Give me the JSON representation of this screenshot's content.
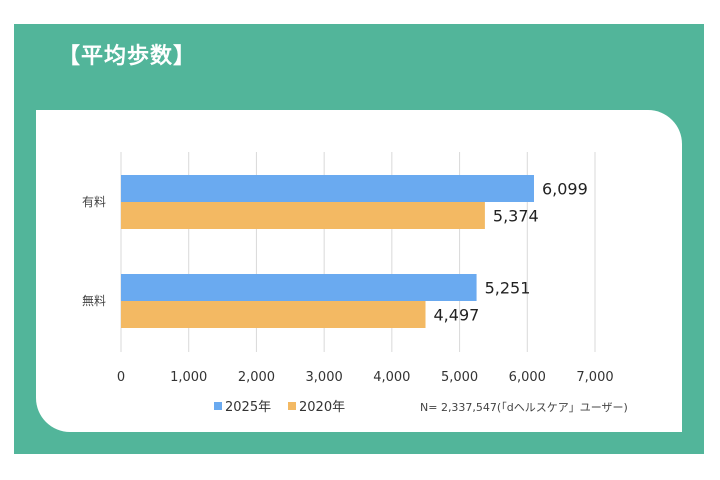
{
  "title": "【平均歩数】",
  "note": "N= 2,337,547(「dヘルスケア」ユーザー)",
  "colors": {
    "frame": "#52b59a",
    "series_2025": "#6aaaf0",
    "series_2020": "#f3b963",
    "grid": "#d9d9d9"
  },
  "chart_data": {
    "type": "bar",
    "orientation": "horizontal",
    "categories": [
      "有料",
      "無料"
    ],
    "series": [
      {
        "name": "2025年",
        "values": [
          6099,
          5251
        ]
      },
      {
        "name": "2020年",
        "values": [
          5374,
          4497
        ]
      }
    ],
    "value_labels": [
      [
        "6,099",
        "5,251"
      ],
      [
        "5,374",
        "4,497"
      ]
    ],
    "xlim": [
      0,
      7000
    ],
    "xticks": [
      0,
      1000,
      2000,
      3000,
      4000,
      5000,
      6000,
      7000
    ],
    "xtick_labels": [
      "0",
      "1,000",
      "2,000",
      "3,000",
      "4,000",
      "5,000",
      "6,000",
      "7,000"
    ],
    "grid": true,
    "legend_position": "bottom"
  }
}
